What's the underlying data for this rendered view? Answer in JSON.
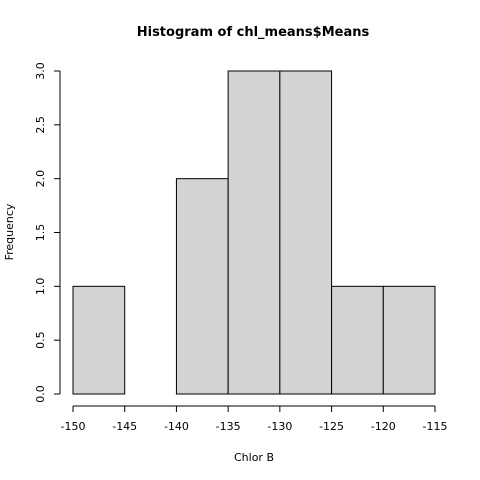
{
  "chart_data": {
    "type": "bar",
    "title": "Histogram of chl_means$Means",
    "xlabel": "Chlor B",
    "ylabel": "Frequency",
    "bins": [
      {
        "start": -150,
        "end": -145,
        "count": 1
      },
      {
        "start": -145,
        "end": -140,
        "count": 0
      },
      {
        "start": -140,
        "end": -135,
        "count": 2
      },
      {
        "start": -135,
        "end": -130,
        "count": 3
      },
      {
        "start": -130,
        "end": -125,
        "count": 3
      },
      {
        "start": -125,
        "end": -120,
        "count": 1
      },
      {
        "start": -120,
        "end": -115,
        "count": 1
      }
    ],
    "xlim": [
      -150,
      -115
    ],
    "ylim": [
      0,
      3
    ],
    "x_ticks": [
      "-150",
      "-145",
      "-140",
      "-135",
      "-130",
      "-125",
      "-120",
      "-115"
    ],
    "y_ticks": [
      "0.0",
      "0.5",
      "1.0",
      "1.5",
      "2.0",
      "2.5",
      "3.0"
    ],
    "bar_fill": "#d3d3d3",
    "bar_stroke": "#000000",
    "grid": false
  }
}
